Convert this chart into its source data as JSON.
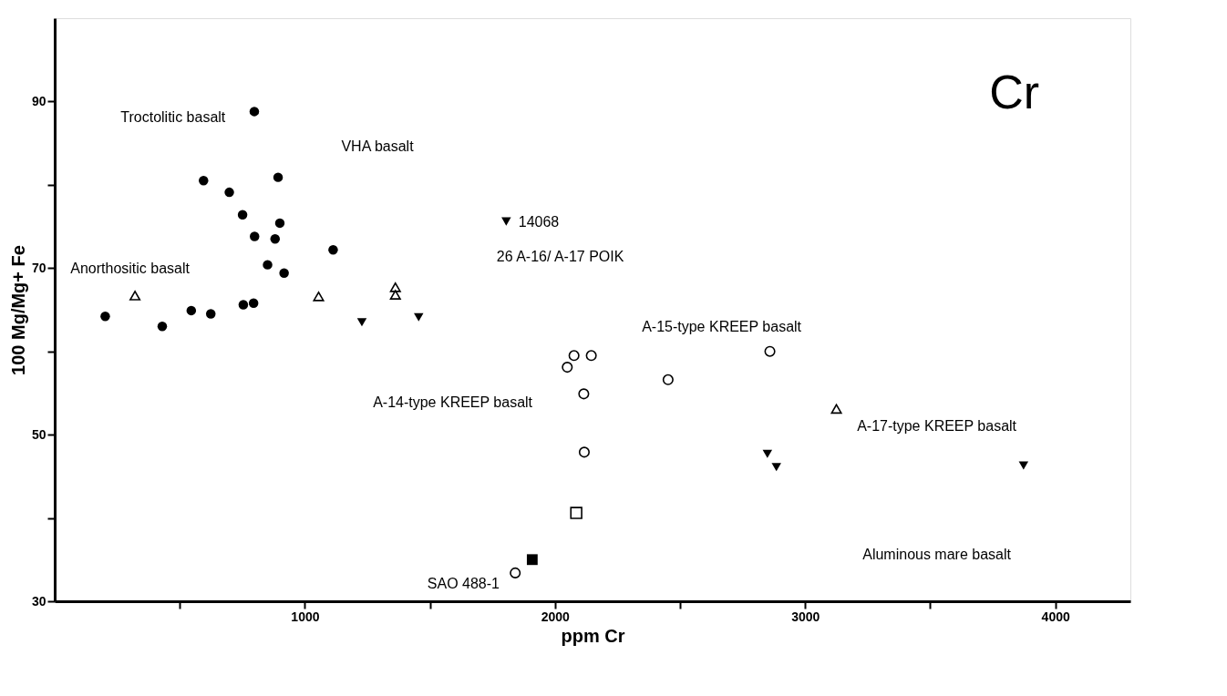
{
  "chart_data": {
    "type": "scatter",
    "title": "Cr",
    "xlabel": "ppm Cr",
    "ylabel": "100 Mg/Mg+ Fe",
    "xlim": [
      0,
      4300
    ],
    "ylim": [
      30,
      100
    ],
    "xticks": [
      {
        "value": 500,
        "label": null
      },
      1000,
      {
        "value": 1500,
        "label": null
      },
      2000,
      {
        "value": 2500,
        "label": null
      },
      3000,
      {
        "value": 3500,
        "label": null
      },
      4000
    ],
    "yticks": [
      30,
      {
        "value": 40,
        "label": null
      },
      50,
      {
        "value": 60,
        "label": null
      },
      70,
      {
        "value": 80,
        "label": null
      },
      90
    ],
    "grid": false,
    "legend": false,
    "series": [
      {
        "color": "#000000",
        "marker": "circle",
        "x": [
          798,
          595,
          698,
          893,
          751,
          900,
          799,
          881,
          1113,
          851,
          917,
          202,
          430,
          546,
          624,
          754,
          795
        ],
        "values": [
          88.8,
          80.5,
          79.1,
          80.9,
          76.4,
          75.4,
          73.8,
          73.5,
          72.2,
          70.4,
          69.4,
          64.2,
          63.0,
          64.9,
          64.5,
          65.6,
          65.8
        ]
      },
      {
        "color": "#000000",
        "marker": "triangle",
        "x": [
          321,
          1055,
          1362,
          1362,
          3125
        ],
        "values": [
          66.7,
          66.6,
          67.7,
          66.8,
          53.1
        ]
      },
      {
        "color": "#000000",
        "marker": "triangle-down",
        "x": [
          1228,
          1455,
          1805,
          2849,
          2885,
          3873
        ],
        "values": [
          63.5,
          64.1,
          75.6,
          47.7,
          46.1,
          46.3
        ]
      },
      {
        "color": "#000000",
        "marker": "circle",
        "x": [
          2076,
          2145,
          2049,
          2115,
          2452,
          2859,
          2117,
          1841
        ],
        "values": [
          59.5,
          59.5,
          58.1,
          54.9,
          56.6,
          60.0,
          47.9,
          33.4
        ]
      },
      {
        "color": "#000000",
        "marker": "square",
        "x": [
          2085
        ],
        "values": [
          40.6
        ]
      },
      {
        "color": "#000000",
        "marker": "square",
        "x": [
          1909
        ],
        "values": [
          35.0
        ]
      }
    ],
    "annotations": [
      "Troctolitic basalt",
      "VHA basalt",
      "Anorthositic basalt",
      "14068",
      "26 A-16/ A-17 POIK",
      "A-14-type KREEP basalt",
      "A-15-type KREEP basalt",
      "A-17-type KREEP basalt",
      "Aluminous mare basalt",
      "SAO 488-1"
    ]
  }
}
